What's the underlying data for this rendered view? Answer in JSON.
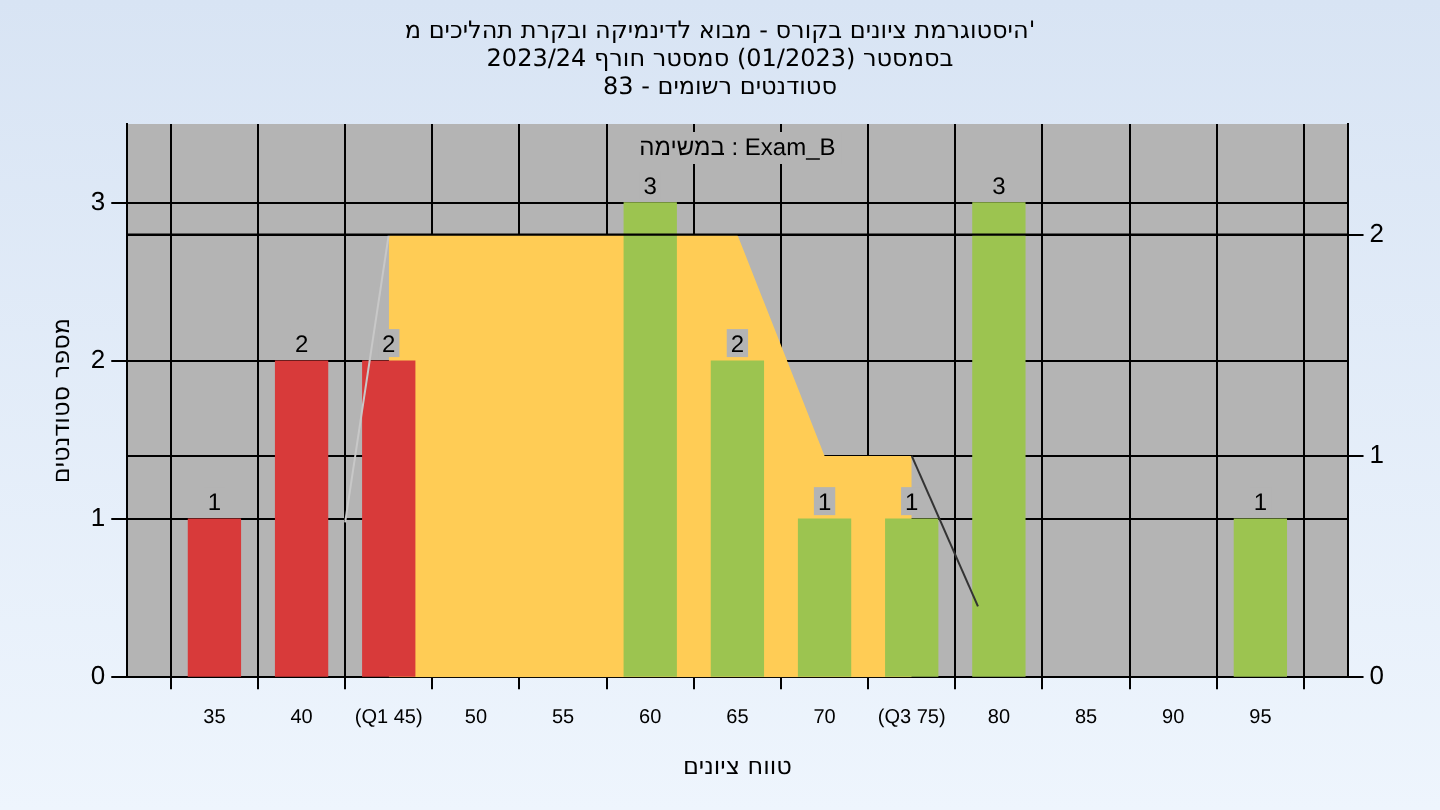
{
  "chart_data": {
    "type": "bar",
    "title": "היסטוגרמת ציונים בקורס - מבוא לדינמיקה ובקרת תהליכים מ'\nבסמסטר (01/2023) סמסטר חורף 2023/24\nסטודנטים רשומים - 83",
    "xlabel": "טווח ציונים",
    "ylabel": "מספר סטודנטים",
    "annotations": [
      "במשימה : Exam_B"
    ],
    "series": [
      {
        "x": [
          35,
          40,
          45,
          60,
          65,
          70,
          75,
          80,
          95
        ],
        "values": [
          1,
          2,
          2,
          3,
          2,
          1,
          1,
          3,
          1
        ],
        "value_labels": [
          "1",
          "2",
          "2",
          "3",
          "2",
          "1",
          "1",
          "3",
          "1"
        ],
        "colors": [
          "#d83a3a",
          "#d83a3a",
          "#d83a3a",
          "#9cc450",
          "#9cc450",
          "#9cc450",
          "#9cc450",
          "#9cc450",
          "#9cc450"
        ]
      },
      {
        "type": "area",
        "axis": "y2",
        "x": [
          45,
          65,
          70,
          75
        ],
        "values": [
          2,
          2,
          1,
          1
        ],
        "color": "#ffcc55"
      },
      {
        "type": "line",
        "axis": "y2",
        "x": [
          42.5,
          45
        ],
        "values": [
          0.7,
          2
        ],
        "color": "#c8c8c8"
      },
      {
        "type": "line",
        "axis": "y2",
        "x": [
          75,
          78.8
        ],
        "values": [
          1,
          0.32
        ],
        "color": "#333333"
      }
    ],
    "xlim": [
      30,
      100
    ],
    "xticks": [
      35,
      40,
      {
        "value": 45,
        "label": "(Q1 45)"
      },
      50,
      55,
      60,
      65,
      70,
      {
        "value": 75,
        "label": "(Q3 75)"
      },
      80,
      85,
      90,
      95
    ],
    "ylim": [
      0,
      3.5
    ],
    "yticks": [
      0,
      1,
      2,
      3
    ],
    "y2lim": [
      0,
      2.5
    ],
    "y2ticks": [
      0,
      1,
      2
    ],
    "ref_lines": [
      {
        "axis": "y2",
        "value": 2,
        "color": "#000000"
      }
    ],
    "grid": true,
    "legend": false
  }
}
